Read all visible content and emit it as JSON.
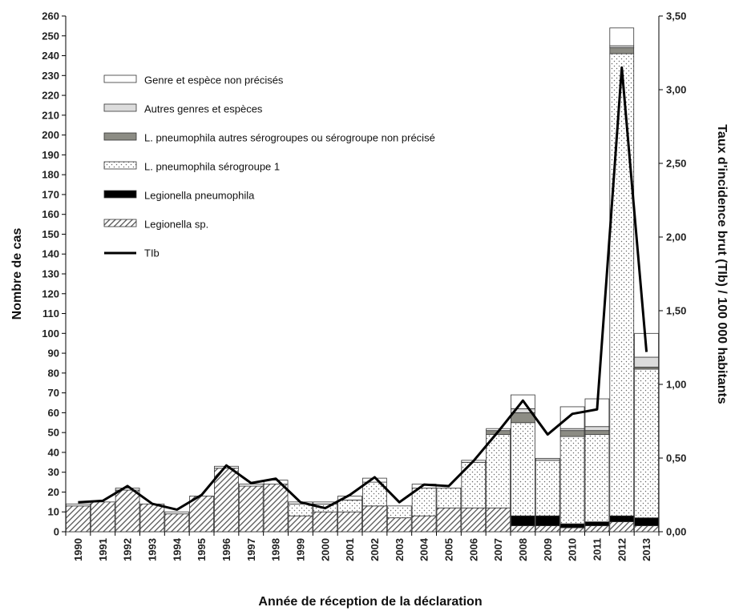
{
  "chart_data": {
    "type": "bar",
    "stacked": true,
    "xlabel": "Année de réception de la déclaration",
    "ylabel": "Nombre de cas",
    "y2label": "Taux d'incidence brut (TIb) / 100 000 habitants",
    "ylim": [
      0,
      260
    ],
    "yticks": [
      0,
      10,
      20,
      30,
      40,
      50,
      60,
      70,
      80,
      90,
      100,
      110,
      120,
      130,
      140,
      150,
      160,
      170,
      180,
      190,
      200,
      210,
      220,
      230,
      240,
      250,
      260
    ],
    "y2lim": [
      0,
      3.5
    ],
    "y2ticks": [
      "0,00",
      "0,50",
      "1,00",
      "1,50",
      "2,00",
      "2,50",
      "3,00",
      "3,50"
    ],
    "legend_position": "top-left",
    "categories": [
      "1990",
      "1991",
      "1992",
      "1993",
      "1994",
      "1995",
      "1996",
      "1997",
      "1998",
      "1999",
      "2000",
      "2001",
      "2002",
      "2003",
      "2004",
      "2005",
      "2006",
      "2007",
      "2008",
      "2009",
      "2010",
      "2011",
      "2012",
      "2013"
    ],
    "series": [
      {
        "name": "Legionella sp.",
        "pattern": "diagonal-hatch",
        "values": [
          13,
          15,
          21,
          14,
          9,
          18,
          32,
          23,
          24,
          8,
          10,
          10,
          13,
          7,
          8,
          12,
          12,
          12,
          3,
          3,
          2,
          3,
          5,
          3
        ]
      },
      {
        "name": "Legionella pneumophila",
        "pattern": "solid-black",
        "values": [
          0,
          0,
          0,
          0,
          0,
          0,
          0,
          0,
          0,
          0,
          0,
          0,
          0,
          0,
          0,
          0,
          0,
          0,
          5,
          5,
          2,
          2,
          3,
          4
        ]
      },
      {
        "name": "L. pneumophila sérogroupe 1",
        "pattern": "dots",
        "values": [
          0,
          0,
          0,
          0,
          0,
          0,
          0,
          0,
          0,
          6,
          4,
          6,
          12,
          6,
          14,
          10,
          23,
          37,
          47,
          28,
          44,
          44,
          233,
          75
        ]
      },
      {
        "name": "L. pneumophila autres sérogroupes ou sérogroupe non précisé",
        "pattern": "dark-grey",
        "values": [
          0,
          0,
          0,
          0,
          0,
          0,
          0,
          0,
          0,
          0,
          0,
          0,
          0,
          0,
          0,
          0,
          0,
          2,
          5,
          0,
          3,
          2,
          3,
          1
        ]
      },
      {
        "name": "Autres genres et espèces",
        "pattern": "light-grey",
        "values": [
          0,
          0,
          0,
          0,
          0,
          0,
          0,
          0,
          0,
          0,
          0,
          0,
          0,
          0,
          0,
          0,
          0,
          0,
          2,
          1,
          1,
          2,
          1,
          5
        ]
      },
      {
        "name": "Genre et espèce non précisés",
        "pattern": "white",
        "values": [
          1,
          0,
          1,
          0,
          1,
          0,
          1,
          1,
          2,
          1,
          1,
          2,
          2,
          0,
          2,
          0,
          1,
          1,
          7,
          0,
          11,
          14,
          9,
          12
        ]
      }
    ],
    "line": {
      "name": "TIb",
      "axis": "right",
      "values": [
        0.2,
        0.21,
        0.31,
        0.19,
        0.15,
        0.25,
        0.45,
        0.33,
        0.36,
        0.2,
        0.16,
        0.25,
        0.37,
        0.2,
        0.32,
        0.31,
        0.48,
        0.68,
        0.89,
        0.66,
        0.8,
        0.83,
        3.15,
        1.22
      ]
    }
  }
}
